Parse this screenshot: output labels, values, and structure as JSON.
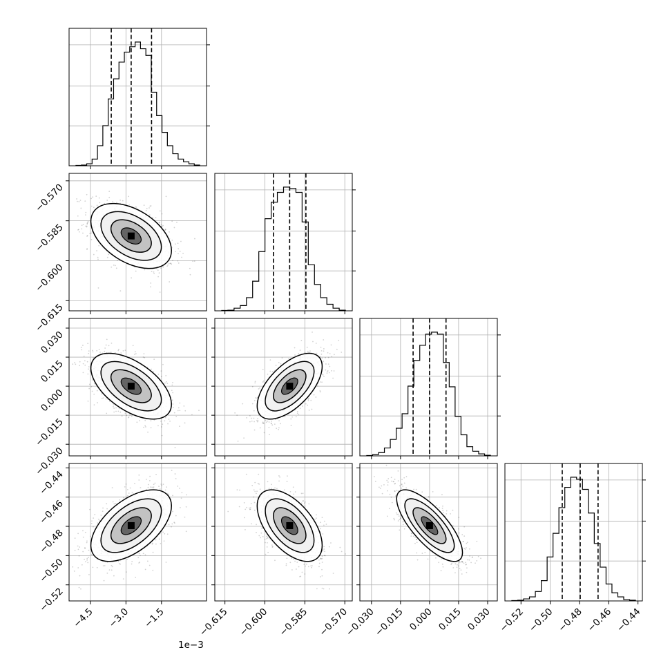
{
  "chart_data": {
    "type": "corner",
    "params": [
      {
        "ticks": [
          -4.5,
          -3.0,
          -1.5
        ],
        "tick_labels": [
          "−4.5",
          "−3.0",
          "−1.5"
        ],
        "range": [
          -5.4,
          0.4
        ],
        "median": -2.78,
        "q16": -3.62,
        "q84": -1.92,
        "offset_text": "1e−3",
        "hist": [
          0.5,
          1,
          3,
          10,
          30,
          60,
          100,
          130,
          155,
          170,
          178,
          185,
          175,
          165,
          110,
          75,
          50,
          30,
          18,
          10,
          6,
          3,
          1
        ]
      },
      {
        "ticks": [
          -0.615,
          -0.6,
          -0.585,
          -0.57
        ],
        "tick_labels": [
          "−0.615",
          "−0.600",
          "−0.585",
          "−0.570"
        ],
        "range": [
          -0.6188,
          -0.5672
        ],
        "median": -0.5907,
        "q16": -0.5968,
        "q84": -0.5846,
        "hist": [
          0.5,
          1,
          4,
          8,
          20,
          45,
          90,
          140,
          165,
          180,
          188,
          186,
          180,
          135,
          70,
          40,
          20,
          10,
          4,
          1
        ]
      },
      {
        "ticks": [
          -0.03,
          -0.015,
          0.0,
          0.015,
          0.03
        ],
        "tick_labels": [
          "−0.030",
          "−0.015",
          "0.000",
          "0.015",
          "0.030"
        ],
        "range": [
          -0.036,
          0.035
        ],
        "median": 0.0,
        "q16": -0.0085,
        "q84": 0.0085,
        "hist": [
          0.5,
          2,
          5,
          12,
          25,
          42,
          64,
          106,
          145,
          168,
          185,
          188,
          185,
          142,
          105,
          60,
          32,
          14,
          7,
          3,
          1
        ]
      },
      {
        "ticks": [
          -0.52,
          -0.5,
          -0.48,
          -0.46,
          -0.44
        ],
        "tick_labels": [
          "−0.52",
          "−0.50",
          "−0.48",
          "−0.46",
          "−0.44"
        ],
        "range": [
          -0.531,
          -0.437
        ],
        "median": -0.4795,
        "q16": -0.4918,
        "q84": -0.4673,
        "hist": [
          0.5,
          1,
          3,
          6,
          14,
          30,
          65,
          100,
          138,
          168,
          183,
          180,
          165,
          130,
          85,
          50,
          25,
          12,
          6,
          2,
          1
        ]
      }
    ],
    "pairs": [
      {
        "row": 1,
        "col": 0,
        "rho": -0.45
      },
      {
        "row": 2,
        "col": 0,
        "rho": -0.55
      },
      {
        "row": 2,
        "col": 1,
        "rho": 0.6
      },
      {
        "row": 3,
        "col": 0,
        "rho": 0.55
      },
      {
        "row": 3,
        "col": 1,
        "rho": -0.55
      },
      {
        "row": 3,
        "col": 2,
        "rho": -0.75
      }
    ],
    "grid": true,
    "quantiles": [
      0.16,
      0.5,
      0.84
    ]
  }
}
